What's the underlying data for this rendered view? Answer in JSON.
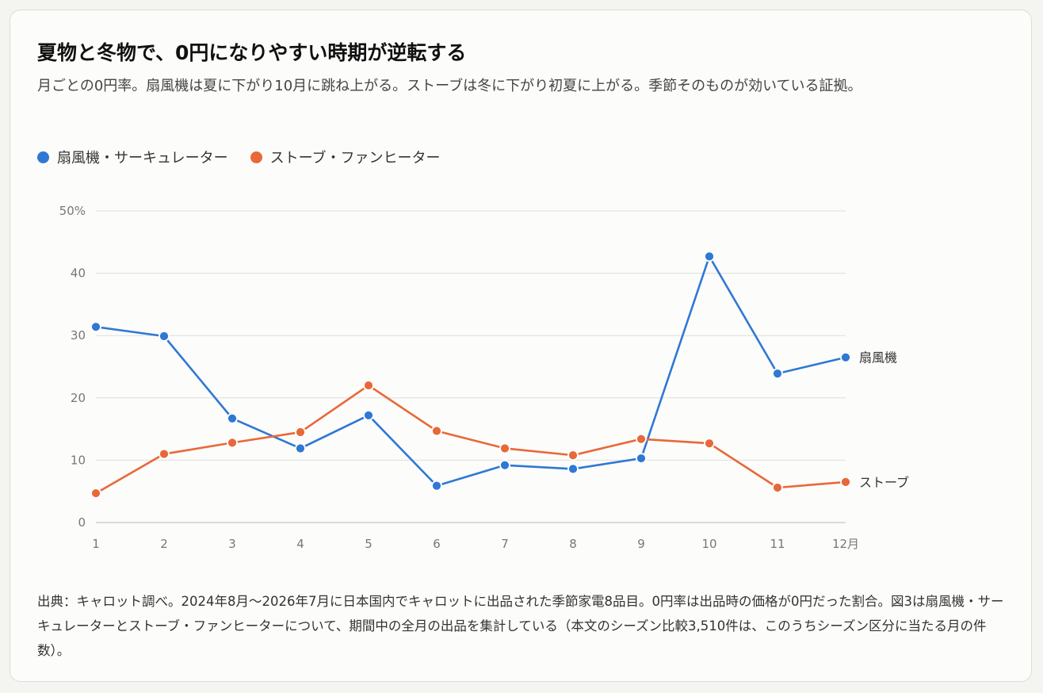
{
  "header": {
    "title": "夏物と冬物で、0円になりやすい時期が逆転する",
    "subtitle": "月ごとの0円率。扇風機は夏に下がり10月に跳ね上がる。ストーブは冬に下がり初夏に上がる。季節そのものが効いている証拠。"
  },
  "legend": {
    "fan": "扇風機・サーキュレーター",
    "stove": "ストーブ・ファンヒーター"
  },
  "colors": {
    "fan": "#2f78d4",
    "stove": "#e8683a"
  },
  "chart_data": {
    "type": "line",
    "x": [
      1,
      2,
      3,
      4,
      5,
      6,
      7,
      8,
      9,
      10,
      11,
      12
    ],
    "x_tick_labels": [
      "1",
      "2",
      "3",
      "4",
      "5",
      "6",
      "7",
      "8",
      "9",
      "10",
      "11",
      "12月"
    ],
    "y_tick_labels": [
      "0",
      "10",
      "20",
      "30",
      "40",
      "50%"
    ],
    "y_ticks": [
      0,
      10,
      20,
      30,
      40,
      50
    ],
    "ylim": [
      0,
      50
    ],
    "grid": true,
    "legend_position": "top-left",
    "series": [
      {
        "name": "扇風機・サーキュレーター",
        "end_label": "扇風機",
        "color": "#2f78d4",
        "values": [
          31.4,
          29.9,
          16.7,
          11.9,
          17.2,
          5.9,
          9.2,
          8.6,
          10.3,
          42.7,
          23.9,
          26.5
        ]
      },
      {
        "name": "ストーブ・ファンヒーター",
        "end_label": "ストーブ",
        "color": "#e8683a",
        "values": [
          4.7,
          11.0,
          12.8,
          14.5,
          22.0,
          14.7,
          11.9,
          10.8,
          13.4,
          12.7,
          5.6,
          6.5
        ]
      }
    ]
  },
  "footer": {
    "source": "出典：キャロット調べ。2024年8月〜2026年7月に日本国内でキャロットに出品された季節家電8品目。0円率は出品時の価格が0円だった割合。図3は扇風機・サーキュレーターとストーブ・ファンヒーターについて、期間中の全月の出品を集計している（本文のシーズン比較3,510件は、このうちシーズン区分に当たる月の件数）。"
  }
}
